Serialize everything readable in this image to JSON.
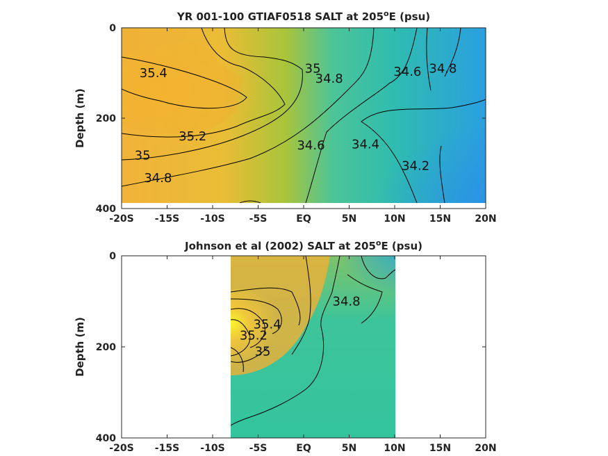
{
  "chart_data": [
    {
      "type": "heatmap",
      "subtype": "filled-contour",
      "title": {
        "prefix": "YR 001-100 GTIAF0518 SALT at 205",
        "sup": "o",
        "suffix": "E (psu)"
      },
      "ylabel": "Depth (m)",
      "x_ticks": [
        "-20S",
        "-15S",
        "-10S",
        "-5S",
        "EQ",
        "5N",
        "10N",
        "15N",
        "20N"
      ],
      "x_tick_values": [
        -20,
        -15,
        -10,
        -5,
        0,
        5,
        10,
        15,
        20
      ],
      "y_ticks": [
        "0",
        "200",
        "400"
      ],
      "y_tick_values": [
        0,
        200,
        400
      ],
      "xlim": [
        -20,
        20
      ],
      "ylim": [
        400,
        0
      ],
      "data_extent": {
        "x": [
          -20,
          20
        ],
        "y": [
          0,
          385
        ]
      },
      "contour_labels": [
        {
          "text": "35.4",
          "x": -16.5,
          "y": 100
        },
        {
          "text": "35",
          "x": 1.0,
          "y": 90
        },
        {
          "text": "34.8",
          "x": 2.8,
          "y": 112
        },
        {
          "text": "34.6",
          "x": 11.4,
          "y": 97
        },
        {
          "text": "34.8",
          "x": 15.3,
          "y": 90
        },
        {
          "text": "35.2",
          "x": -12.2,
          "y": 240
        },
        {
          "text": "35",
          "x": -17.7,
          "y": 282
        },
        {
          "text": "34.8",
          "x": -16.0,
          "y": 332
        },
        {
          "text": "34.6",
          "x": 0.8,
          "y": 260
        },
        {
          "text": "34.4",
          "x": 6.8,
          "y": 258
        },
        {
          "text": "34.2",
          "x": 12.3,
          "y": 305
        }
      ]
    },
    {
      "type": "heatmap",
      "subtype": "filled-contour",
      "title": {
        "prefix": "Johnson et al (2002) SALT at 205",
        "sup": "o",
        "suffix": "E (psu)"
      },
      "ylabel": "Depth (m)",
      "x_ticks": [
        "-20S",
        "-15S",
        "-10S",
        "-5S",
        "EQ",
        "5N",
        "10N",
        "15N",
        "20N"
      ],
      "x_tick_values": [
        -20,
        -15,
        -10,
        -5,
        0,
        5,
        10,
        15,
        20
      ],
      "y_ticks": [
        "0",
        "200",
        "400"
      ],
      "y_tick_values": [
        0,
        200,
        400
      ],
      "xlim": [
        -20,
        20
      ],
      "ylim": [
        400,
        0
      ],
      "data_extent": {
        "x": [
          -8,
          10
        ],
        "y": [
          0,
          400
        ]
      },
      "contour_labels": [
        {
          "text": "34.8",
          "x": 4.7,
          "y": 100
        },
        {
          "text": "35",
          "x": -4.5,
          "y": 210
        },
        {
          "text": "35.2",
          "x": -5.5,
          "y": 175
        },
        {
          "text": "35.4",
          "x": -4.0,
          "y": 150
        }
      ]
    }
  ]
}
